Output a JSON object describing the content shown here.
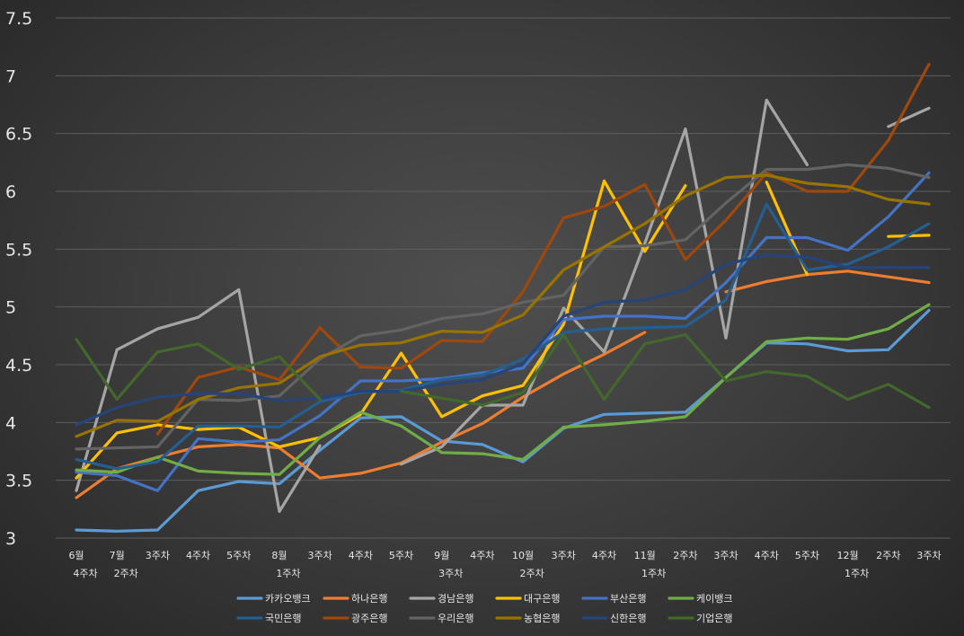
{
  "chart_data": {
    "type": "line",
    "title": "",
    "xlabel": "",
    "ylabel": "",
    "ylim": [
      3,
      7.5
    ],
    "yticks": [
      "3",
      "3.5",
      "4",
      "4.5",
      "5",
      "5.5",
      "6",
      "6.5",
      "7",
      "7.5"
    ],
    "grid": true,
    "legend_position": "bottom",
    "categories": [
      [
        "6월",
        "4주차"
      ],
      [
        "7월",
        "2주차"
      ],
      [
        "3주차"
      ],
      [
        "4주차"
      ],
      [
        "5주차"
      ],
      [
        "8월",
        "1주차"
      ],
      [
        "3주차"
      ],
      [
        "4주차"
      ],
      [
        "5주차"
      ],
      [
        "9월",
        "3주차"
      ],
      [
        "4주차"
      ],
      [
        "10월",
        "2주차"
      ],
      [
        "3주차"
      ],
      [
        "4주차"
      ],
      [
        "11월",
        "1주차"
      ],
      [
        "2주차"
      ],
      [
        "3주차"
      ],
      [
        "4주차"
      ],
      [
        "5주차"
      ],
      [
        "12월",
        "1주차"
      ],
      [
        "2주차"
      ],
      [
        "3주차"
      ]
    ],
    "series": [
      {
        "name": "카카오뱅크",
        "color": "#5b9bd5",
        "values": [
          3.07,
          3.06,
          3.07,
          3.41,
          3.49,
          3.47,
          3.76,
          4.04,
          4.05,
          3.84,
          3.81,
          3.66,
          3.95,
          4.07,
          4.08,
          4.09,
          4.39,
          4.69,
          4.68,
          4.62,
          4.63,
          4.97
        ]
      },
      {
        "name": "하나은행",
        "color": "#ed7d31",
        "values": [
          3.35,
          3.6,
          3.7,
          3.79,
          3.81,
          3.78,
          3.52,
          3.56,
          3.65,
          3.83,
          3.99,
          4.22,
          4.42,
          4.59,
          4.78,
          null,
          5.13,
          5.22,
          5.28,
          5.31,
          5.26,
          5.21
        ]
      },
      {
        "name": "경남은행",
        "color": "#a5a5a5",
        "values": [
          3.41,
          4.63,
          4.81,
          4.91,
          5.15,
          3.23,
          3.8,
          null,
          3.64,
          3.79,
          4.15,
          4.15,
          4.99,
          4.61,
          5.55,
          6.54,
          4.73,
          6.79,
          6.23,
          null,
          6.56,
          6.72
        ]
      },
      {
        "name": "대구은행",
        "color": "#ffc000",
        "values": [
          3.52,
          3.91,
          3.98,
          3.94,
          3.96,
          3.79,
          3.87,
          4.07,
          4.6,
          4.05,
          4.23,
          4.32,
          4.85,
          6.09,
          5.48,
          6.05,
          null,
          6.08,
          5.28,
          null,
          5.61,
          5.62
        ]
      },
      {
        "name": "부산은행",
        "color": "#4472c4",
        "values": [
          3.57,
          3.54,
          3.41,
          3.86,
          3.83,
          3.85,
          4.06,
          4.36,
          4.36,
          4.38,
          4.43,
          4.47,
          4.89,
          4.92,
          4.92,
          4.9,
          5.21,
          5.6,
          5.6,
          5.49,
          5.78,
          6.16
        ]
      },
      {
        "name": "케이뱅크",
        "color": "#70ad47",
        "values": [
          3.59,
          3.57,
          3.7,
          3.58,
          3.56,
          3.55,
          3.87,
          4.09,
          3.97,
          3.74,
          3.73,
          3.68,
          3.96,
          3.98,
          4.01,
          4.05,
          4.39,
          4.7,
          4.73,
          4.72,
          4.81,
          5.02
        ]
      },
      {
        "name": "국민은행",
        "color": "#255e91",
        "values": [
          3.68,
          3.6,
          3.66,
          3.97,
          3.97,
          3.96,
          4.18,
          4.26,
          4.28,
          4.37,
          4.41,
          4.55,
          4.78,
          4.81,
          4.82,
          4.83,
          5.06,
          5.89,
          5.32,
          5.37,
          5.52,
          5.72
        ]
      },
      {
        "name": "광주은행",
        "color": "#9e480e",
        "values": [
          null,
          null,
          3.9,
          4.39,
          4.48,
          4.37,
          4.82,
          4.48,
          4.47,
          4.71,
          4.7,
          5.13,
          5.77,
          5.87,
          6.06,
          5.41,
          5.75,
          6.16,
          6.0,
          6.0,
          6.44,
          7.1
        ]
      },
      {
        "name": "우리은행",
        "color": "#636363",
        "values": [
          3.77,
          3.78,
          3.79,
          4.2,
          4.19,
          4.23,
          4.55,
          4.75,
          4.8,
          4.9,
          4.94,
          5.04,
          5.1,
          5.52,
          5.53,
          5.58,
          5.9,
          6.19,
          6.19,
          6.23,
          6.2,
          6.12
        ]
      },
      {
        "name": "농협은행",
        "color": "#997300",
        "values": [
          3.88,
          4.02,
          4.01,
          4.2,
          4.3,
          4.34,
          4.57,
          4.67,
          4.69,
          4.79,
          4.78,
          4.93,
          5.32,
          5.52,
          5.72,
          5.96,
          6.12,
          6.14,
          6.07,
          6.04,
          5.93,
          5.89
        ]
      },
      {
        "name": "신한은행",
        "color": "#264478",
        "values": [
          3.98,
          4.13,
          4.22,
          4.25,
          4.25,
          4.19,
          4.21,
          4.27,
          4.27,
          4.33,
          4.37,
          4.51,
          4.92,
          5.04,
          5.06,
          5.15,
          5.37,
          5.45,
          5.43,
          5.34,
          5.34,
          5.34
        ]
      },
      {
        "name": "기업은행",
        "color": "#43682b",
        "values": [
          4.72,
          4.2,
          4.61,
          4.68,
          4.46,
          4.57,
          4.2,
          null,
          4.27,
          4.21,
          4.15,
          4.26,
          4.76,
          4.2,
          4.68,
          4.76,
          4.36,
          4.44,
          4.4,
          4.2,
          4.33,
          4.13
        ]
      }
    ]
  }
}
